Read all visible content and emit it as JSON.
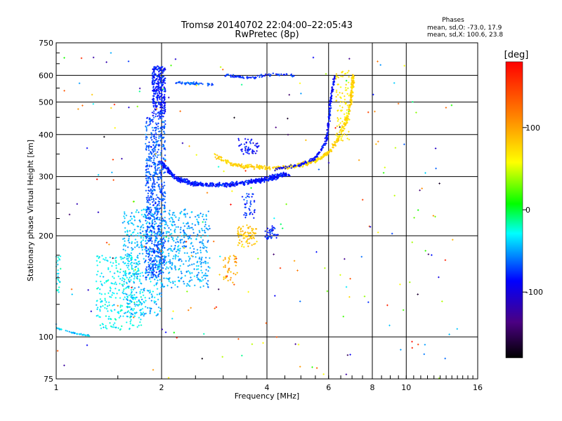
{
  "chart_data": {
    "type": "scatter",
    "title": "Tromsø 20140702 22:04:00–22:05:43",
    "subtitle": "RwPretec (8p)",
    "xlabel": "Frequency [MHz]",
    "ylabel": "Stationary phase Virtual Height [km]",
    "x_scale": "log",
    "y_scale": "log",
    "xlim": [
      1,
      16
    ],
    "ylim": [
      75,
      750
    ],
    "x_ticks": [
      1,
      2,
      4,
      6,
      8,
      10,
      16
    ],
    "x_tick_labels": [
      "1",
      "2",
      "4",
      "6",
      "8",
      "10",
      "16"
    ],
    "y_ticks": [
      75,
      100,
      200,
      300,
      400,
      500,
      600,
      750
    ],
    "y_tick_labels": [
      "75",
      "100",
      "200",
      "300",
      "400",
      "500",
      "600",
      "750"
    ],
    "grid": true,
    "stats": {
      "heading": "Phases",
      "line1": "mean, sd,O: -73.0, 17.9",
      "line2": "mean, sd,X: 100.6, 23.8"
    },
    "colorbar": {
      "label": "[deg]",
      "range": [
        -180,
        180
      ],
      "ticks": [
        100,
        0,
        -100
      ],
      "tick_labels": [
        "100",
        "0",
        "-100"
      ]
    },
    "features": [
      {
        "kind": "curve",
        "points": [
          [
            1.0,
            106
          ],
          [
            1.08,
            104
          ],
          [
            1.15,
            102
          ],
          [
            1.25,
            101
          ]
        ],
        "phase": -50,
        "count": 40,
        "spread": 0.005
      },
      {
        "kind": "blob",
        "x": [
          1.0,
          1.03
        ],
        "y": [
          135,
          175
        ],
        "phase": -40,
        "count": 25
      },
      {
        "kind": "blob",
        "x": [
          1.3,
          1.75
        ],
        "y": [
          105,
          175
        ],
        "phase": -40,
        "count": 260
      },
      {
        "kind": "blob",
        "x": [
          1.55,
          2.0
        ],
        "y": [
          115,
          240
        ],
        "phase": -55,
        "count": 420
      },
      {
        "kind": "blob",
        "x": [
          1.8,
          2.05
        ],
        "y": [
          150,
          450
        ],
        "phase": -80,
        "count": 700
      },
      {
        "kind": "blob",
        "x": [
          1.88,
          2.05
        ],
        "y": [
          450,
          640
        ],
        "phase": -95,
        "count": 300
      },
      {
        "kind": "blob",
        "x": [
          2.0,
          2.75
        ],
        "y": [
          140,
          240
        ],
        "phase": -60,
        "count": 380
      },
      {
        "kind": "curve",
        "points": [
          [
            2.0,
            330
          ],
          [
            2.2,
            295
          ],
          [
            2.5,
            285
          ],
          [
            3.0,
            283
          ],
          [
            3.5,
            288
          ],
          [
            4.0,
            295
          ],
          [
            4.6,
            305
          ]
        ],
        "phase": -95,
        "count": 620,
        "spread": 0.018
      },
      {
        "kind": "curve",
        "points": [
          [
            2.2,
            570
          ],
          [
            2.8,
            565
          ]
        ],
        "phase": -80,
        "count": 60,
        "spread": 0.01
      },
      {
        "kind": "curve",
        "points": [
          [
            3.0,
            600
          ],
          [
            3.6,
            590
          ],
          [
            4.2,
            605
          ],
          [
            4.8,
            600
          ]
        ],
        "phase": -90,
        "count": 80,
        "spread": 0.012
      },
      {
        "kind": "curve",
        "points": [
          [
            2.85,
            345
          ],
          [
            3.2,
            325
          ],
          [
            3.6,
            320
          ],
          [
            4.1,
            318
          ],
          [
            4.6,
            320
          ],
          [
            5.2,
            328
          ],
          [
            5.7,
            340
          ],
          [
            6.1,
            360
          ],
          [
            6.5,
            400
          ],
          [
            6.8,
            450
          ],
          [
            7.0,
            530
          ],
          [
            7.05,
            600
          ]
        ],
        "phase": 80,
        "count": 520,
        "spread": 0.015
      },
      {
        "kind": "curve",
        "points": [
          [
            4.2,
            315
          ],
          [
            5.0,
            325
          ],
          [
            5.5,
            340
          ],
          [
            5.9,
            380
          ],
          [
            6.0,
            430
          ],
          [
            6.1,
            520
          ],
          [
            6.25,
            600
          ]
        ],
        "phase": -100,
        "count": 230,
        "spread": 0.012
      },
      {
        "kind": "blob",
        "x": [
          3.3,
          3.8
        ],
        "y": [
          350,
          390
        ],
        "phase": -100,
        "count": 50
      },
      {
        "kind": "blob",
        "x": [
          3.3,
          3.75
        ],
        "y": [
          185,
          215
        ],
        "phase": 90,
        "count": 80
      },
      {
        "kind": "blob",
        "x": [
          3.0,
          3.3
        ],
        "y": [
          145,
          175
        ],
        "phase": 100,
        "count": 40
      },
      {
        "kind": "blob",
        "x": [
          3.4,
          3.7
        ],
        "y": [
          225,
          270
        ],
        "phase": -90,
        "count": 40
      },
      {
        "kind": "blob",
        "x": [
          3.95,
          4.3
        ],
        "y": [
          195,
          215
        ],
        "phase": -90,
        "count": 40
      },
      {
        "kind": "blob",
        "x": [
          6.3,
          6.9
        ],
        "y": [
          380,
          620
        ],
        "phase": 70,
        "count": 90
      },
      {
        "kind": "noise",
        "x": [
          1.0,
          14.0
        ],
        "y": [
          75,
          700
        ],
        "phase": "random",
        "count": 220
      }
    ]
  }
}
